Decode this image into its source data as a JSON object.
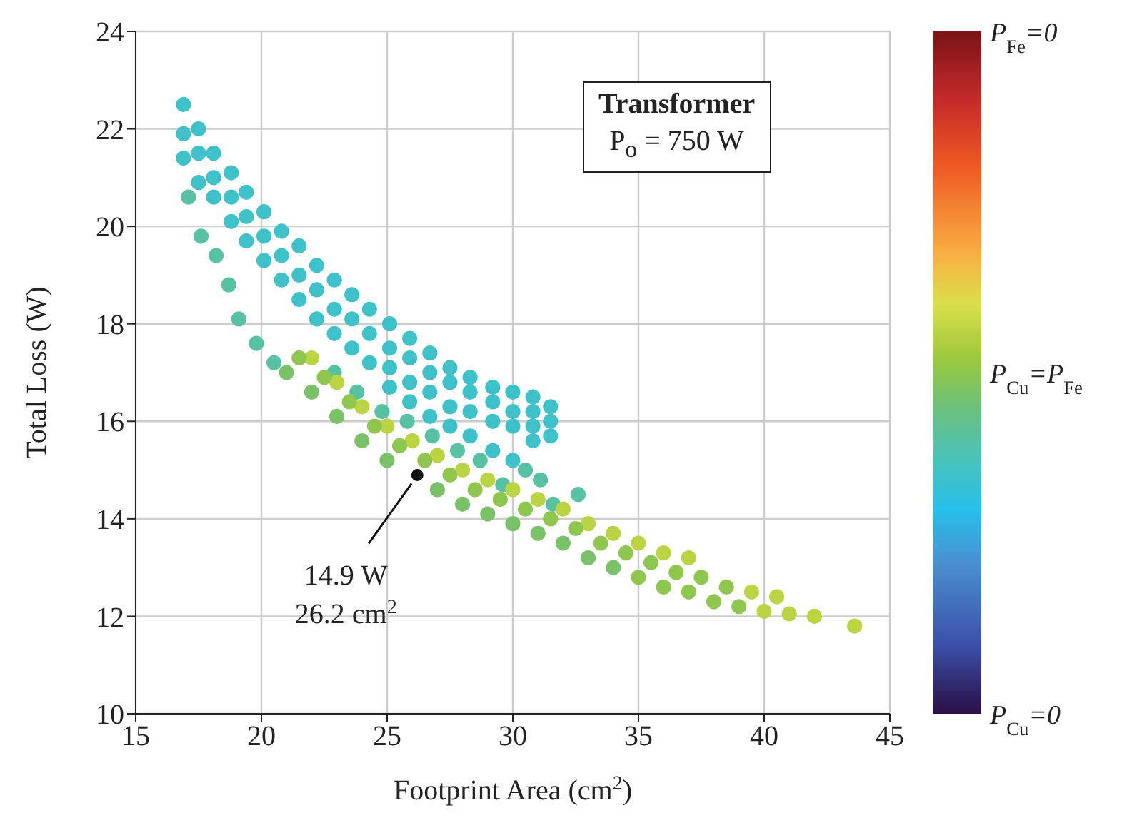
{
  "chart_data": {
    "type": "scatter",
    "xlabel": "Footprint Area (cm$^{2}$)",
    "ylabel": "Total Loss (W)",
    "xlim": [
      15,
      45
    ],
    "xticks": [
      15,
      20,
      25,
      30,
      35,
      40,
      45
    ],
    "ylim": [
      10,
      24
    ],
    "yticks": [
      10,
      12,
      14,
      16,
      18,
      20,
      22,
      24
    ],
    "grid": true,
    "marker": "circle",
    "annotations": [
      "Transformer",
      "P$_{o}$ = 750 W",
      {
        "text": "14.9 W\n26.2 cm$^{2}$",
        "x": 26.2,
        "y": 14.9
      },
      "P$_{Fe}$=0",
      "P$_{Cu}$=P$_{Fe}$",
      "P$_{Cu}$=0"
    ],
    "series": [
      {
        "color": "#3fc1c9",
        "x": [
          16.9,
          16.9,
          16.9,
          17.5,
          17.5,
          17.5,
          18.1,
          18.1,
          18.1,
          18.8,
          18.8,
          18.8,
          19.4,
          19.4,
          19.4,
          20.1,
          20.1,
          20.1,
          20.8,
          20.8,
          20.8,
          21.5,
          21.5,
          21.5,
          22.2,
          22.2,
          22.2,
          22.9,
          22.9,
          22.9,
          23.6,
          23.6,
          23.6,
          24.3,
          24.3,
          24.3,
          25.1,
          25.1,
          25.1,
          25.1,
          25.9,
          25.9,
          25.9,
          25.9,
          26.7,
          26.7,
          26.7,
          26.7,
          27.5,
          27.5,
          27.5,
          27.5,
          28.3,
          28.3,
          28.3,
          28.3,
          29.2,
          29.2,
          29.2,
          29.2,
          30.0,
          30.0,
          30.0,
          30.0,
          30.8,
          30.8,
          30.8,
          30.8,
          31.5,
          31.5,
          31.5
        ],
        "values": [
          22.5,
          21.9,
          21.4,
          22.0,
          21.5,
          20.9,
          21.5,
          21.0,
          20.6,
          21.1,
          20.6,
          20.1,
          20.7,
          20.2,
          19.7,
          20.3,
          19.8,
          19.3,
          19.9,
          19.4,
          18.9,
          19.6,
          19.0,
          18.5,
          19.2,
          18.7,
          18.1,
          18.9,
          18.3,
          17.8,
          18.6,
          18.1,
          17.5,
          18.3,
          17.8,
          17.2,
          18.0,
          17.5,
          17.1,
          16.7,
          17.7,
          17.3,
          16.8,
          16.4,
          17.4,
          17.0,
          16.6,
          16.1,
          17.1,
          16.8,
          16.3,
          15.9,
          16.9,
          16.6,
          16.2,
          15.7,
          16.7,
          16.4,
          16.0,
          15.4,
          16.6,
          16.2,
          15.9,
          15.2,
          16.5,
          16.2,
          15.9,
          15.6,
          16.3,
          16.0,
          15.7
        ]
      },
      {
        "color": "#57c1a4",
        "x": [
          17.1,
          17.6,
          18.2,
          18.7,
          19.1,
          19.8,
          20.5,
          22.9,
          23.8,
          24.8,
          25.8,
          26.8,
          27.8,
          28.7,
          29.6,
          30.5,
          31.1,
          31.6,
          32.6
        ],
        "values": [
          20.6,
          19.8,
          19.4,
          18.8,
          18.1,
          17.6,
          17.2,
          17.0,
          16.6,
          16.2,
          16.0,
          15.7,
          15.4,
          15.2,
          14.7,
          15.0,
          14.8,
          14.3,
          14.5
        ]
      },
      {
        "color": "#bad443",
        "x": [
          22,
          23,
          24,
          25,
          26,
          27,
          28,
          29,
          30,
          31,
          32,
          33,
          34,
          35,
          36,
          37,
          39.5,
          40.5,
          40,
          41,
          42,
          43.6
        ],
        "values": [
          17.3,
          16.8,
          16.3,
          15.9,
          15.6,
          15.3,
          15.0,
          14.8,
          14.6,
          14.4,
          14.2,
          13.9,
          13.7,
          13.5,
          13.3,
          13.2,
          12.5,
          12.4,
          12.1,
          12.05,
          12.0,
          11.8
        ]
      },
      {
        "color": "#8ec64e",
        "x": [
          21.5,
          22.5,
          23.5,
          24.5,
          25.5,
          26.5,
          27.5,
          28.5,
          29.5,
          30.5,
          31.5,
          32.5,
          33.5,
          34.5,
          35.5,
          36.5,
          37.5,
          38.5,
          35,
          36,
          37,
          38,
          39
        ],
        "values": [
          17.3,
          16.9,
          16.4,
          15.9,
          15.5,
          15.2,
          14.9,
          14.6,
          14.4,
          14.2,
          14.0,
          13.8,
          13.5,
          13.3,
          13.1,
          12.9,
          12.8,
          12.6,
          12.8,
          12.6,
          12.5,
          12.3,
          12.2
        ]
      },
      {
        "color": "#7ac268",
        "x": [
          21,
          22,
          23,
          24,
          25,
          27,
          28,
          29,
          30,
          31,
          32,
          33,
          34
        ],
        "values": [
          17.0,
          16.6,
          16.1,
          15.6,
          15.2,
          14.6,
          14.3,
          14.1,
          13.9,
          13.7,
          13.5,
          13.2,
          13.0
        ]
      }
    ]
  }
}
